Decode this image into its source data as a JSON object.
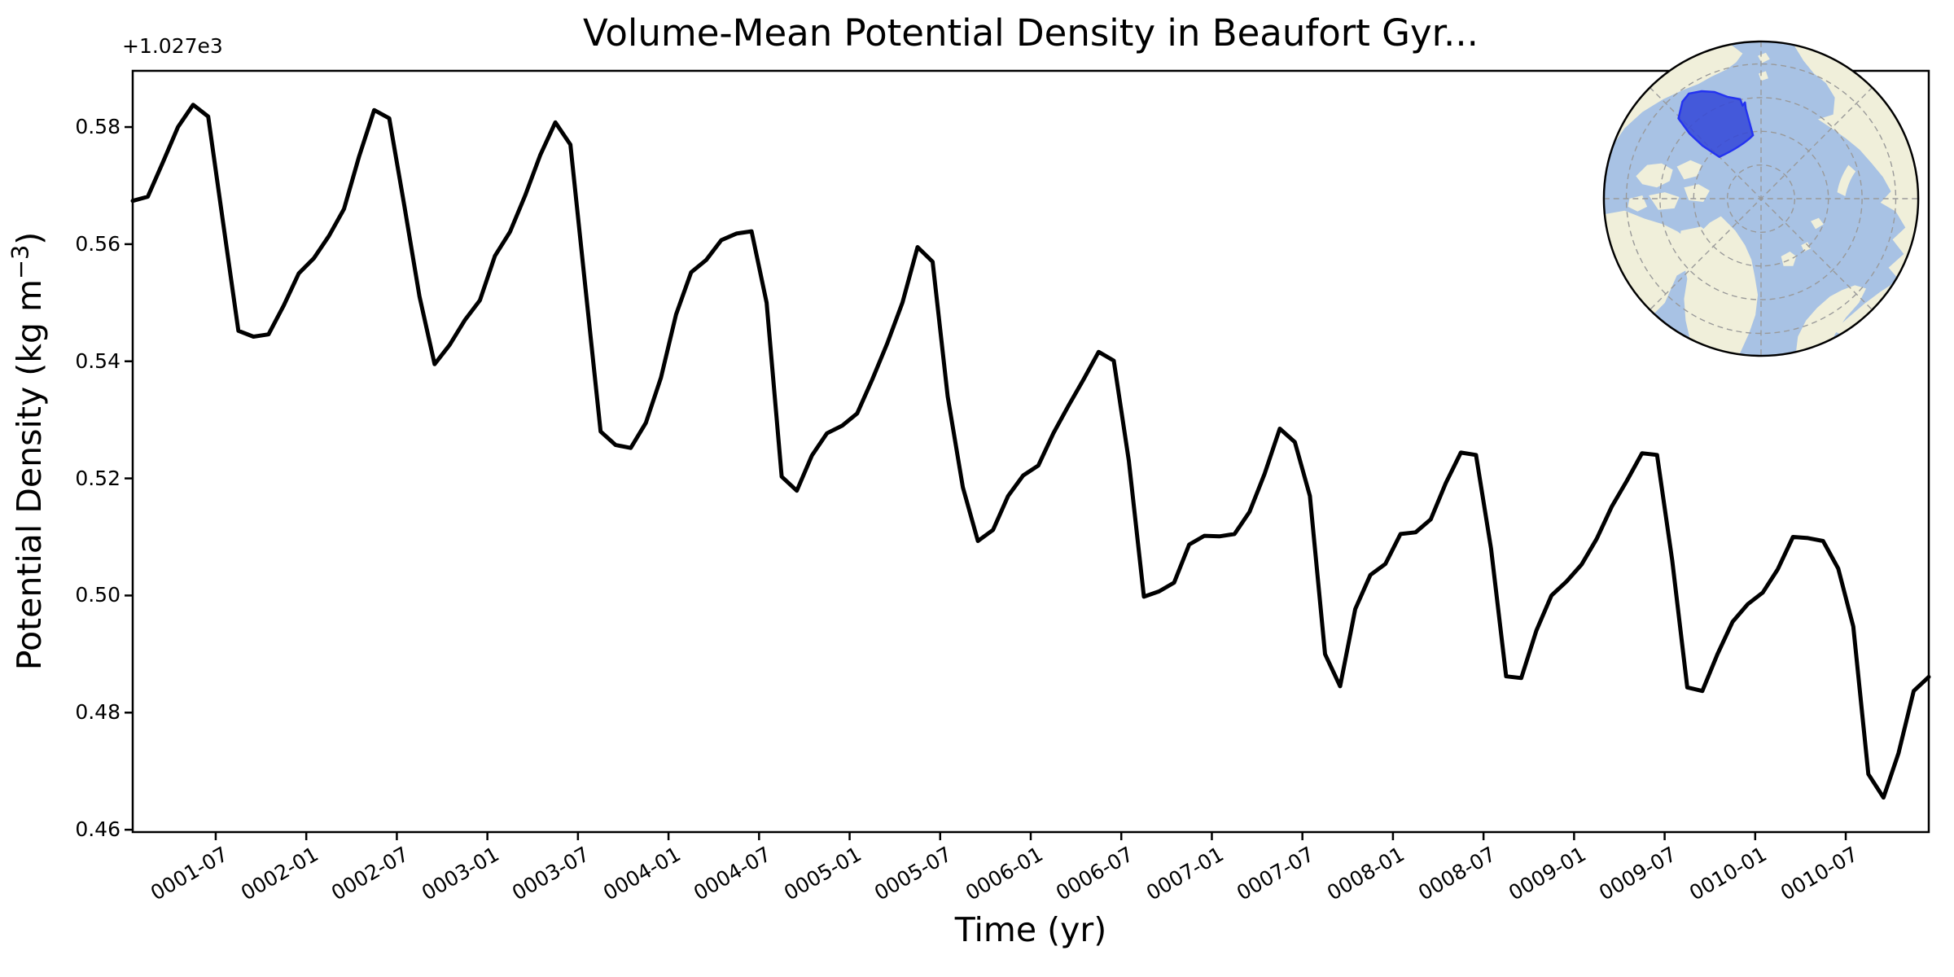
{
  "figure": {
    "title": "Volume-Mean Potential Density in Beaufort Gyr...",
    "offset_text": "+1.027e3",
    "xlabel": "Time (yr)",
    "ylabel_prefix": "Potential Density (kg m",
    "ylabel_sup": "−3",
    "ylabel_suffix": ")"
  },
  "chart_data": {
    "type": "line",
    "title": "Volume-Mean Potential Density in Beaufort Gyr...",
    "xlabel": "Time (yr)",
    "ylabel": "Potential Density (kg m−3)",
    "y_offset_label": "+1.027e3",
    "grid": false,
    "legend": "none",
    "line_color": "#000000",
    "line_width": 5,
    "ylim": [
      1027.4596,
      1027.5896
    ],
    "yticks": [
      {
        "pos": 1027.46,
        "label": "0.46"
      },
      {
        "pos": 1027.48,
        "label": "0.48"
      },
      {
        "pos": 1027.5,
        "label": "0.50"
      },
      {
        "pos": 1027.52,
        "label": "0.52"
      },
      {
        "pos": 1027.54,
        "label": "0.54"
      },
      {
        "pos": 1027.56,
        "label": "0.56"
      },
      {
        "pos": 1027.58,
        "label": "0.58"
      }
    ],
    "xtick_rotation_deg": 30,
    "xticks": [
      {
        "pos": 5.5,
        "label": "0001-07"
      },
      {
        "pos": 11.5,
        "label": "0002-01"
      },
      {
        "pos": 17.5,
        "label": "0002-07"
      },
      {
        "pos": 23.5,
        "label": "0003-01"
      },
      {
        "pos": 29.5,
        "label": "0003-07"
      },
      {
        "pos": 35.5,
        "label": "0004-01"
      },
      {
        "pos": 41.5,
        "label": "0004-07"
      },
      {
        "pos": 47.5,
        "label": "0005-01"
      },
      {
        "pos": 53.5,
        "label": "0005-07"
      },
      {
        "pos": 59.5,
        "label": "0006-01"
      },
      {
        "pos": 65.5,
        "label": "0006-07"
      },
      {
        "pos": 71.5,
        "label": "0007-01"
      },
      {
        "pos": 77.5,
        "label": "0007-07"
      },
      {
        "pos": 83.5,
        "label": "0008-01"
      },
      {
        "pos": 89.5,
        "label": "0008-07"
      },
      {
        "pos": 95.5,
        "label": "0009-01"
      },
      {
        "pos": 101.5,
        "label": "0009-07"
      },
      {
        "pos": 107.5,
        "label": "0010-01"
      },
      {
        "pos": 113.5,
        "label": "0010-07"
      }
    ],
    "x": [
      "0001-01",
      "0001-02",
      "0001-03",
      "0001-04",
      "0001-05",
      "0001-06",
      "0001-07",
      "0001-08",
      "0001-09",
      "0001-10",
      "0001-11",
      "0001-12",
      "0002-01",
      "0002-02",
      "0002-03",
      "0002-04",
      "0002-05",
      "0002-06",
      "0002-07",
      "0002-08",
      "0002-09",
      "0002-10",
      "0002-11",
      "0002-12",
      "0003-01",
      "0003-02",
      "0003-03",
      "0003-04",
      "0003-05",
      "0003-06",
      "0003-07",
      "0003-08",
      "0003-09",
      "0003-10",
      "0003-11",
      "0003-12",
      "0004-01",
      "0004-02",
      "0004-03",
      "0004-04",
      "0004-05",
      "0004-06",
      "0004-07",
      "0004-08",
      "0004-09",
      "0004-10",
      "0004-11",
      "0004-12",
      "0005-01",
      "0005-02",
      "0005-03",
      "0005-04",
      "0005-05",
      "0005-06",
      "0005-07",
      "0005-08",
      "0005-09",
      "0005-10",
      "0005-11",
      "0005-12",
      "0006-01",
      "0006-02",
      "0006-03",
      "0006-04",
      "0006-05",
      "0006-06",
      "0006-07",
      "0006-08",
      "0006-09",
      "0006-10",
      "0006-11",
      "0006-12",
      "0007-01",
      "0007-02",
      "0007-03",
      "0007-04",
      "0007-05",
      "0007-06",
      "0007-07",
      "0007-08",
      "0007-09",
      "0007-10",
      "0007-11",
      "0007-12",
      "0008-01",
      "0008-02",
      "0008-03",
      "0008-04",
      "0008-05",
      "0008-06",
      "0008-07",
      "0008-08",
      "0008-09",
      "0008-10",
      "0008-11",
      "0008-12",
      "0009-01",
      "0009-02",
      "0009-03",
      "0009-04",
      "0009-05",
      "0009-06",
      "0009-07",
      "0009-08",
      "0009-09",
      "0009-10",
      "0009-11",
      "0009-12",
      "0010-01",
      "0010-02",
      "0010-03",
      "0010-04",
      "0010-05",
      "0010-06",
      "0010-07",
      "0010-08",
      "0010-09",
      "0010-10",
      "0010-11",
      "0010-12"
    ],
    "series": [
      {
        "name": "volume-mean potential density",
        "values": [
          1027.5674,
          1027.5681,
          1027.574,
          1027.58,
          1027.5838,
          1027.5818,
          1027.5635,
          1027.5452,
          1027.5442,
          1027.5446,
          1027.5495,
          1027.555,
          1027.5576,
          1027.5614,
          1027.566,
          1027.575,
          1027.5829,
          1027.5815,
          1027.5665,
          1027.5511,
          1027.5395,
          1027.5428,
          1027.547,
          1027.5504,
          1027.558,
          1027.5621,
          1027.5683,
          1027.5752,
          1027.5808,
          1027.577,
          1027.5525,
          1027.528,
          1027.5257,
          1027.5252,
          1027.5295,
          1027.5372,
          1027.548,
          1027.5552,
          1027.5573,
          1027.5607,
          1027.5618,
          1027.5622,
          1027.55,
          1027.5203,
          1027.5179,
          1027.5239,
          1027.5277,
          1027.529,
          1027.5311,
          1027.5369,
          1027.5431,
          1027.55,
          1027.5595,
          1027.557,
          1027.534,
          1027.5185,
          1027.5093,
          1027.5112,
          1027.517,
          1027.5205,
          1027.5222,
          1027.5277,
          1027.5324,
          1027.5369,
          1027.5416,
          1027.5401,
          1027.523,
          1027.4998,
          1027.5007,
          1027.5022,
          1027.5087,
          1027.5102,
          1027.5101,
          1027.5105,
          1027.5143,
          1027.5208,
          1027.5285,
          1027.5262,
          1027.517,
          1027.49,
          1027.4845,
          1027.4977,
          1027.5035,
          1027.5054,
          1027.5105,
          1027.5108,
          1027.513,
          1027.5192,
          1027.5244,
          1027.524,
          1027.508,
          1027.4862,
          1027.4859,
          1027.494,
          1027.5,
          1027.5024,
          1027.5053,
          1027.5097,
          1027.5152,
          1027.5196,
          1027.5243,
          1027.524,
          1027.506,
          1027.4843,
          1027.4837,
          1027.49,
          1027.4955,
          1027.4985,
          1027.5005,
          1027.5045,
          1027.51,
          1027.5098,
          1027.5093,
          1027.5046,
          1027.4947,
          1027.4695,
          1027.4655,
          1027.4731,
          1027.4837,
          1027.4861
        ]
      }
    ]
  },
  "inset_map": {
    "description": "north-polar-stereographic-locator-map",
    "region_name": "beaufort-gyre-region",
    "colors": {
      "ocean": "#a8c2e4",
      "land": "#f0efda",
      "graticule": "#999999",
      "region_fill": "#3346d8",
      "region_edge": "#2433f0",
      "border": "#000000"
    }
  }
}
